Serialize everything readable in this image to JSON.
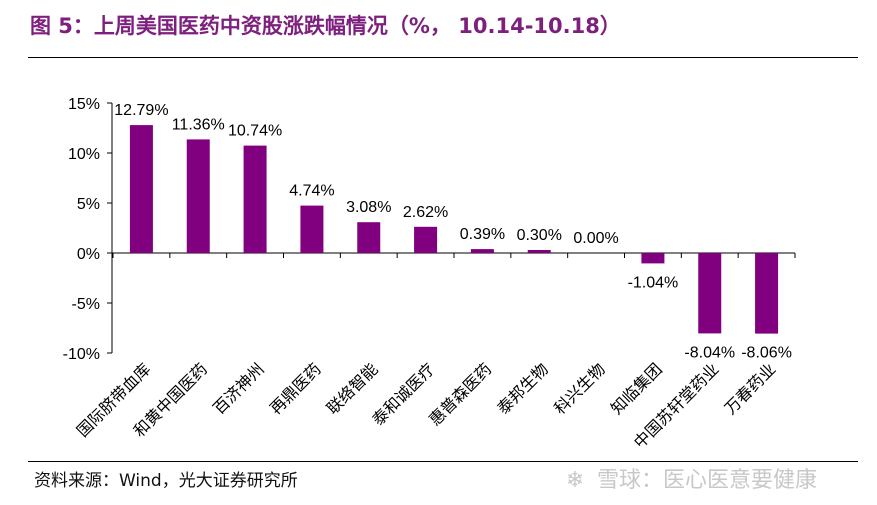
{
  "header": {
    "title": "图 5：上周美国医药中资股涨跌幅情况（%，  10.14-10.18）"
  },
  "footer": {
    "source": "资料来源：Wind，光大证券研究所",
    "watermark_text": "雪球：医心医意要健康",
    "watermark_icon": "snowball-logo-icon"
  },
  "colors": {
    "bar": "#800080",
    "title": "#7d1f7d"
  },
  "chart_data": {
    "type": "bar",
    "title": "上周美国医药中资股涨跌幅情况（%，  10.14-10.18）",
    "xlabel": "",
    "ylabel": "",
    "ylim": [
      -10,
      15
    ],
    "y_ticks": [
      -10,
      -5,
      0,
      5,
      10,
      15
    ],
    "y_tick_labels": [
      "-10%",
      "-5%",
      "0%",
      "5%",
      "10%",
      "15%"
    ],
    "grid": false,
    "legend": "none",
    "categories": [
      "国际脐带血库",
      "和黄中国医药",
      "百济神州",
      "再鼎医药",
      "联络智能",
      "泰和诚医疗",
      "惠普森医药",
      "泰邦生物",
      "科兴生物",
      "知临集团",
      "中国苏轩堂药业",
      "万春药业"
    ],
    "values": [
      12.79,
      11.36,
      10.74,
      4.74,
      3.08,
      2.62,
      0.39,
      0.3,
      0.0,
      -1.04,
      -8.04,
      -8.06
    ],
    "data_labels": [
      "12.79%",
      "11.36%",
      "10.74%",
      "4.74%",
      "3.08%",
      "2.62%",
      "0.39%",
      "0.30%",
      "0.00%",
      "-1.04%",
      "-8.04%",
      "-8.06%"
    ]
  }
}
